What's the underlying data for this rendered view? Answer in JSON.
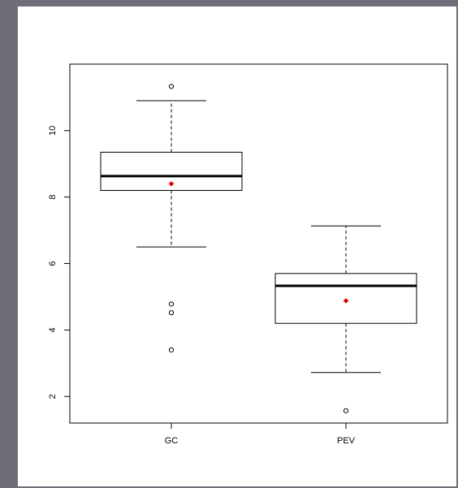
{
  "chart_data": {
    "type": "boxplot",
    "title": "",
    "xlabel": "",
    "ylabel": "",
    "categories": [
      "GC",
      "PEV"
    ],
    "ylim": [
      1.2,
      12.0
    ],
    "yticks": [
      "2",
      "4",
      "6",
      "8",
      "10"
    ],
    "grid": false,
    "legend": "none",
    "series": [
      {
        "category": "GC",
        "whisker_low": 6.5,
        "q1": 8.2,
        "median": 8.63,
        "q3": 9.35,
        "whisker_high": 10.9,
        "mean": 8.4,
        "outliers": [
          11.33,
          4.78,
          4.52,
          3.4
        ]
      },
      {
        "category": "PEV",
        "whisker_low": 2.72,
        "q1": 4.2,
        "median": 5.33,
        "q3": 5.7,
        "whisker_high": 7.13,
        "mean": 4.88,
        "outliers": [
          1.57
        ]
      }
    ],
    "colors": {
      "box": "#000000",
      "median": "#000000",
      "mean_marker": "#e00000",
      "outlier": "#000000"
    }
  }
}
